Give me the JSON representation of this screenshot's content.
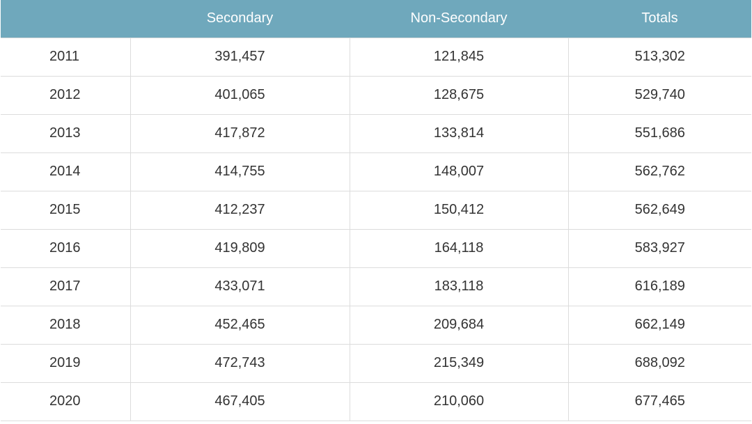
{
  "table": {
    "header": {
      "year": "",
      "secondary": "Secondary",
      "non_secondary": "Non-Secondary",
      "totals": "Totals"
    },
    "header_color": "#6fa8bc",
    "rows": [
      {
        "year": "2011",
        "secondary": "391,457",
        "non_secondary": "121,845",
        "totals": "513,302"
      },
      {
        "year": "2012",
        "secondary": "401,065",
        "non_secondary": "128,675",
        "totals": "529,740"
      },
      {
        "year": "2013",
        "secondary": "417,872",
        "non_secondary": "133,814",
        "totals": "551,686"
      },
      {
        "year": "2014",
        "secondary": "414,755",
        "non_secondary": "148,007",
        "totals": "562,762"
      },
      {
        "year": "2015",
        "secondary": "412,237",
        "non_secondary": "150,412",
        "totals": "562,649"
      },
      {
        "year": "2016",
        "secondary": "419,809",
        "non_secondary": "164,118",
        "totals": "583,927"
      },
      {
        "year": "2017",
        "secondary": "433,071",
        "non_secondary": "183,118",
        "totals": "616,189"
      },
      {
        "year": "2018",
        "secondary": "452,465",
        "non_secondary": "209,684",
        "totals": "662,149"
      },
      {
        "year": "2019",
        "secondary": "472,743",
        "non_secondary": "215,349",
        "totals": "688,092"
      },
      {
        "year": "2020",
        "secondary": "467,405",
        "non_secondary": "210,060",
        "totals": "677,465"
      }
    ]
  }
}
